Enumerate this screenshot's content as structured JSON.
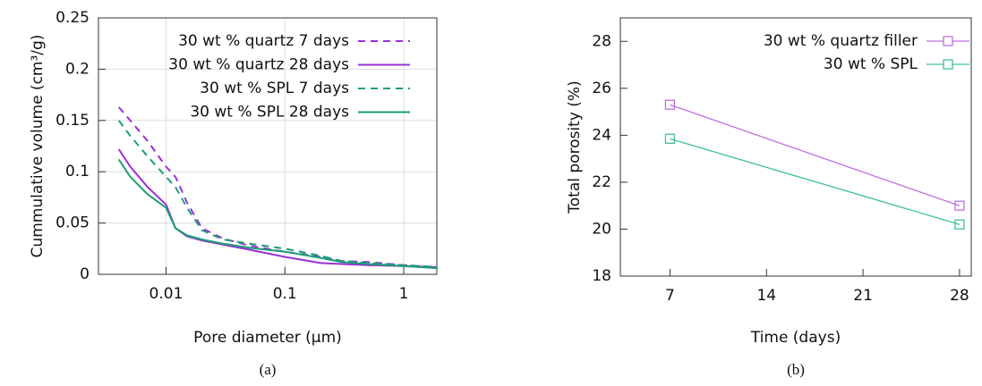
{
  "chart_data": [
    {
      "type": "line",
      "caption": "(a)",
      "x_label": "Pore diameter (µm)",
      "y_label": "Cummulative volume (cm³/g)",
      "x": [
        0.004,
        0.005,
        0.007,
        0.01,
        0.012,
        0.015,
        0.02,
        0.03,
        0.05,
        0.1,
        0.2,
        0.3,
        0.5,
        1,
        1.9
      ],
      "series": [
        {
          "name": "30 wt % quartz 7 days",
          "color": "#9b30d9",
          "dashed": true,
          "values": [
            0.163,
            0.15,
            0.13,
            0.105,
            0.095,
            0.07,
            0.045,
            0.035,
            0.028,
            0.022,
            0.017,
            0.013,
            0.012,
            0.009,
            0.007
          ]
        },
        {
          "name": "30 wt % quartz 28 days",
          "color": "#9b30d9",
          "dashed": false,
          "values": [
            0.122,
            0.105,
            0.085,
            0.068,
            0.045,
            0.037,
            0.033,
            0.029,
            0.024,
            0.017,
            0.011,
            0.01,
            0.009,
            0.008,
            0.007
          ]
        },
        {
          "name": "30 wt % SPL 7 days",
          "color": "#1a9e77",
          "dashed": true,
          "values": [
            0.15,
            0.135,
            0.115,
            0.095,
            0.085,
            0.065,
            0.043,
            0.034,
            0.03,
            0.025,
            0.018,
            0.013,
            0.011,
            0.009,
            0.007
          ]
        },
        {
          "name": "30 wt % SPL 28 days",
          "color": "#1a9e77",
          "dashed": false,
          "values": [
            0.112,
            0.095,
            0.078,
            0.065,
            0.045,
            0.038,
            0.034,
            0.03,
            0.026,
            0.022,
            0.016,
            0.012,
            0.01,
            0.008,
            0.006
          ]
        }
      ],
      "x_log": true,
      "xlim": [
        0.0027,
        1.9
      ],
      "xticks": [
        0.01,
        0.1,
        1
      ],
      "ylim": [
        0,
        0.25
      ],
      "yticks": [
        0,
        0.05,
        0.1,
        0.15,
        0.2,
        0.25
      ],
      "grid": true,
      "markers": false
    },
    {
      "type": "line",
      "caption": "(b)",
      "x_label": "Time (days)",
      "y_label": "Total porosity (%)",
      "x": [
        7,
        28
      ],
      "series": [
        {
          "name": "30 wt % quartz filler",
          "color": "#c06ee0",
          "dashed": false,
          "values": [
            25.3,
            21.0
          ]
        },
        {
          "name": "30 wt % SPL",
          "color": "#40c090",
          "dashed": false,
          "values": [
            23.85,
            20.2
          ]
        }
      ],
      "x_log": false,
      "xlim": [
        3.4,
        28.85
      ],
      "xticks": [
        7,
        14,
        21,
        28
      ],
      "ylim": [
        18,
        29
      ],
      "yticks": [
        18,
        20,
        22,
        24,
        26,
        28
      ],
      "grid": false,
      "markers": true
    }
  ]
}
